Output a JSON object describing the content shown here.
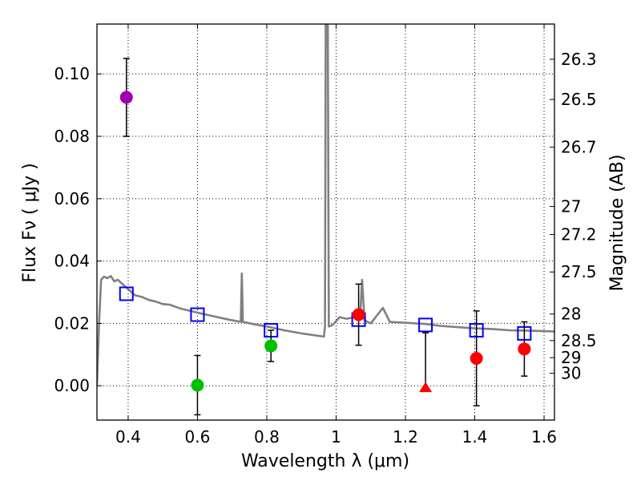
{
  "chart_data": {
    "type": "scatter",
    "title": "",
    "xlabel": "Wavelength  λ (μm)",
    "ylabel": "Flux  Fν  ( μJy )",
    "y2label": "Magnitude (AB)",
    "xlim": [
      0.31,
      1.63
    ],
    "ylim": [
      -0.011,
      0.116
    ],
    "grid": true,
    "x_ticks": [
      0.4,
      0.6,
      0.8,
      1.0,
      1.2,
      1.4,
      1.6
    ],
    "x_tick_labels": [
      "0.4",
      "0.6",
      "0.8",
      "1",
      "1.2",
      "1.4",
      "1.6"
    ],
    "y_ticks": [
      0.0,
      0.02,
      0.04,
      0.06,
      0.08,
      0.1
    ],
    "y_tick_labels": [
      "0.00",
      "0.02",
      "0.04",
      "0.06",
      "0.08",
      "0.10"
    ],
    "right_axis": {
      "label": "Magnitude (AB)",
      "tick_labels": [
        "26.3",
        "26.5",
        "26.7",
        "27",
        "27.2",
        "27.5",
        "28",
        "28.5",
        "29",
        "30"
      ],
      "flux_positions": [
        0.1047,
        0.0918,
        0.0765,
        0.0575,
        0.0485,
        0.0365,
        0.023,
        0.0145,
        0.009,
        0.004
      ]
    },
    "series": [
      {
        "name": "observed-violet",
        "marker": "circle",
        "color": "#a000b0",
        "points": [
          {
            "x": 0.395,
            "y": 0.0925,
            "err": 0.0125
          }
        ]
      },
      {
        "name": "observed-green",
        "marker": "circle",
        "color": "#00c000",
        "points": [
          {
            "x": 0.6,
            "y": 0.0002,
            "err": 0.0095
          },
          {
            "x": 0.812,
            "y": 0.0128,
            "err": 0.005
          }
        ]
      },
      {
        "name": "observed-red",
        "marker": "circle",
        "color": "#ff0000",
        "points": [
          {
            "x": 1.065,
            "y": 0.0228,
            "err": 0.0098
          },
          {
            "x": 1.405,
            "y": 0.0088,
            "err": 0.0152
          },
          {
            "x": 1.543,
            "y": 0.0118,
            "err": 0.0087
          }
        ]
      },
      {
        "name": "upper-limit",
        "marker": "triangle",
        "color": "#ff0000",
        "points": [
          {
            "x": 1.258,
            "y": -0.0005,
            "err_low": 0.0,
            "err_high": 0.0175
          }
        ]
      },
      {
        "name": "model-synthetic",
        "marker": "square-open",
        "color": "#0000ff",
        "points": [
          {
            "x": 0.395,
            "y": 0.0295
          },
          {
            "x": 0.6,
            "y": 0.0228
          },
          {
            "x": 0.812,
            "y": 0.0178
          },
          {
            "x": 1.065,
            "y": 0.0212
          },
          {
            "x": 1.258,
            "y": 0.0195
          },
          {
            "x": 1.405,
            "y": 0.0178
          },
          {
            "x": 1.543,
            "y": 0.0168
          }
        ]
      },
      {
        "name": "model-spectrum",
        "marker": "line",
        "color": "#808080",
        "points": [
          {
            "x": 0.31,
            "y": 0.0
          },
          {
            "x": 0.316,
            "y": 0.02
          },
          {
            "x": 0.322,
            "y": 0.034
          },
          {
            "x": 0.33,
            "y": 0.035
          },
          {
            "x": 0.34,
            "y": 0.0345
          },
          {
            "x": 0.35,
            "y": 0.0352
          },
          {
            "x": 0.36,
            "y": 0.0335
          },
          {
            "x": 0.37,
            "y": 0.034
          },
          {
            "x": 0.385,
            "y": 0.0325
          },
          {
            "x": 0.4,
            "y": 0.031
          },
          {
            "x": 0.42,
            "y": 0.029
          },
          {
            "x": 0.44,
            "y": 0.0285
          },
          {
            "x": 0.46,
            "y": 0.0275
          },
          {
            "x": 0.48,
            "y": 0.027
          },
          {
            "x": 0.5,
            "y": 0.0262
          },
          {
            "x": 0.52,
            "y": 0.026
          },
          {
            "x": 0.55,
            "y": 0.0248
          },
          {
            "x": 0.58,
            "y": 0.024
          },
          {
            "x": 0.61,
            "y": 0.0232
          },
          {
            "x": 0.65,
            "y": 0.0222
          },
          {
            "x": 0.69,
            "y": 0.0212
          },
          {
            "x": 0.725,
            "y": 0.0205
          },
          {
            "x": 0.728,
            "y": 0.036
          },
          {
            "x": 0.731,
            "y": 0.0205
          },
          {
            "x": 0.76,
            "y": 0.0198
          },
          {
            "x": 0.8,
            "y": 0.019
          },
          {
            "x": 0.85,
            "y": 0.0178
          },
          {
            "x": 0.9,
            "y": 0.0168
          },
          {
            "x": 0.95,
            "y": 0.016
          },
          {
            "x": 0.965,
            "y": 0.0158
          },
          {
            "x": 0.968,
            "y": 0.019
          },
          {
            "x": 0.97,
            "y": 0.116
          },
          {
            "x": 0.976,
            "y": 0.116
          },
          {
            "x": 0.979,
            "y": 0.019
          },
          {
            "x": 0.99,
            "y": 0.0195
          },
          {
            "x": 1.01,
            "y": 0.022
          },
          {
            "x": 1.03,
            "y": 0.0215
          },
          {
            "x": 1.055,
            "y": 0.022
          },
          {
            "x": 1.07,
            "y": 0.0235
          },
          {
            "x": 1.075,
            "y": 0.034
          },
          {
            "x": 1.082,
            "y": 0.021
          },
          {
            "x": 1.1,
            "y": 0.02
          },
          {
            "x": 1.135,
            "y": 0.025
          },
          {
            "x": 1.155,
            "y": 0.0205
          },
          {
            "x": 1.2,
            "y": 0.0202
          },
          {
            "x": 1.26,
            "y": 0.0198
          },
          {
            "x": 1.3,
            "y": 0.0192
          },
          {
            "x": 1.35,
            "y": 0.0188
          },
          {
            "x": 1.4,
            "y": 0.0184
          },
          {
            "x": 1.45,
            "y": 0.0182
          },
          {
            "x": 1.5,
            "y": 0.0178
          },
          {
            "x": 1.55,
            "y": 0.0177
          },
          {
            "x": 1.6,
            "y": 0.0175
          },
          {
            "x": 1.63,
            "y": 0.0174
          }
        ]
      }
    ]
  }
}
